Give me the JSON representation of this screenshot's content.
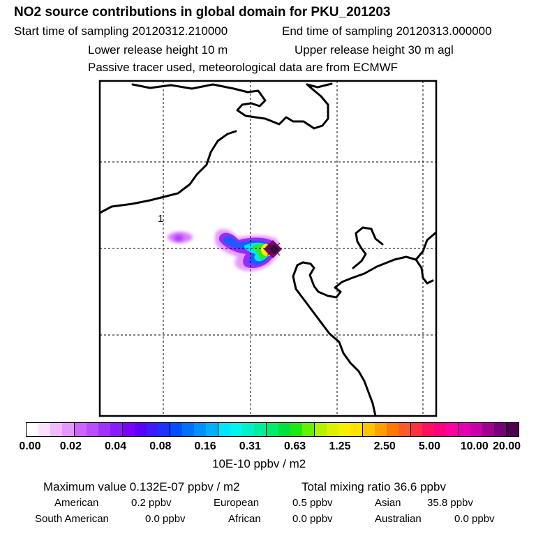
{
  "header": {
    "title": "NO2 source contributions in global domain for PKU_201203",
    "start_time": "Start time of sampling 20120312.210000",
    "end_time": "End time of sampling 20120313.000000",
    "lower_release": "Lower release height   10 m",
    "upper_release": "Upper release height   30 m    agl",
    "note": "Passive tracer used, meteorological data are from ECMWF"
  },
  "map": {
    "label_1": "1",
    "receptor": "PKU"
  },
  "colorbar": {
    "colors": [
      "#ffffff",
      "#fbe0ff",
      "#f0baff",
      "#e498ff",
      "#cc66ff",
      "#b94dff",
      "#a033ff",
      "#8c1aff",
      "#7d00ff",
      "#5a00ff",
      "#3c1cff",
      "#2030ff",
      "#0050ff",
      "#0070ff",
      "#0090ff",
      "#00b0ff",
      "#00e5ff",
      "#00f5ef",
      "#00f0c8",
      "#00eca0",
      "#00ec6e",
      "#00e040",
      "#1ee814",
      "#64f000",
      "#b4f000",
      "#dcf000",
      "#f5f000",
      "#ffe000",
      "#ffc400",
      "#ffa000",
      "#ff7800",
      "#ff5a28",
      "#ff3040",
      "#ff1060",
      "#ff0080",
      "#ff00a0",
      "#e600b4",
      "#c800aa",
      "#a00090",
      "#780078",
      "#500050"
    ],
    "tick_labels": [
      "0.00",
      "0.02",
      "0.04",
      "0.08",
      "0.16",
      "0.31",
      "0.63",
      "1.25",
      "2.50",
      "5.00",
      "10.00",
      "20.00"
    ],
    "units": "10E-10 ppbv / m2"
  },
  "stats": {
    "max_value": "Maximum value  0.132E-07 ppbv / m2",
    "total_mixing": "Total mixing ratio      36.6 ppbv",
    "rows": [
      [
        {
          "label": "American",
          "value": "0.2 ppbv"
        },
        {
          "label": "European",
          "value": "0.5 ppbv"
        },
        {
          "label": "Asian",
          "value": "35.8 ppbv"
        }
      ],
      [
        {
          "label": "South American",
          "value": "0.0 ppbv"
        },
        {
          "label": "African",
          "value": "0.0 ppbv"
        },
        {
          "label": "Australian",
          "value": "0.0 ppbv"
        }
      ]
    ]
  }
}
